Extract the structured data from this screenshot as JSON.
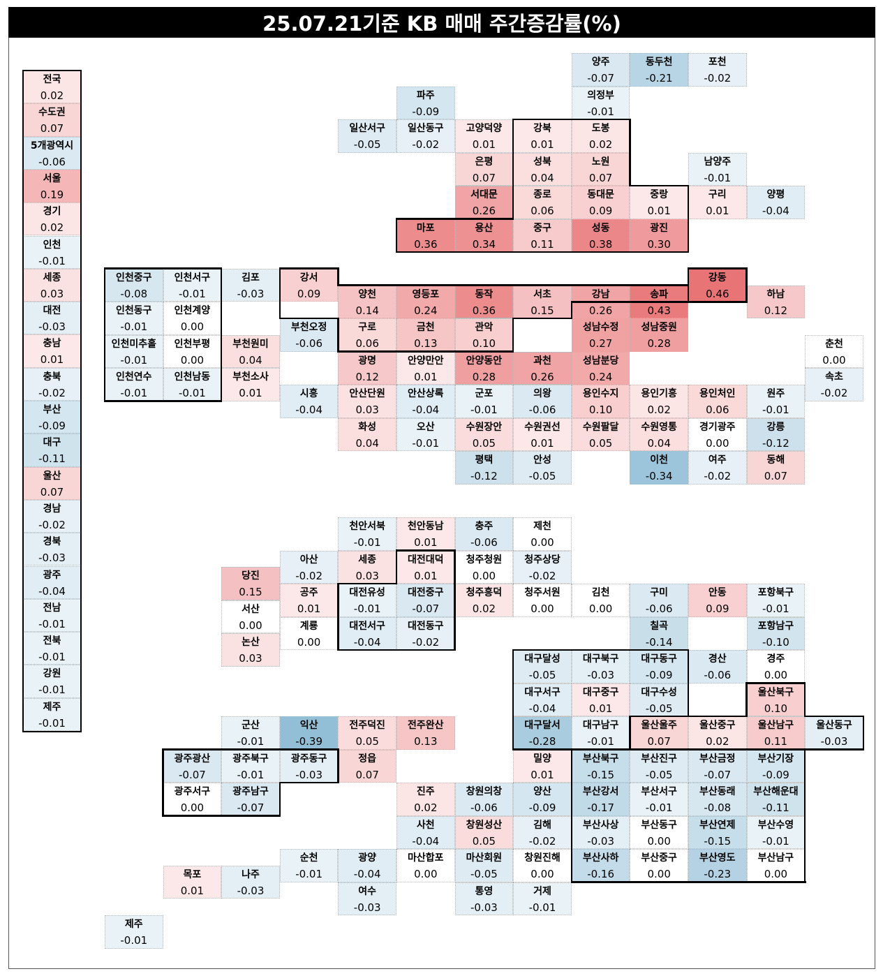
{
  "title": "25.07.21기준 KB 매매 주간증감률(%)",
  "chart_data": {
    "type": "heatmap",
    "title": "25.07.21기준 KB 매매 주간증감률(%)",
    "unit": "%",
    "color_scale": {
      "positive": "#d9444a",
      "negative": "#3d7fa8",
      "zero": "#ffffff"
    },
    "summary": [
      {
        "name": "전국",
        "value": "0.02"
      },
      {
        "name": "수도권",
        "value": "0.07"
      },
      {
        "name": "5개광역시",
        "value": "-0.06"
      },
      {
        "name": "서울",
        "value": "0.19"
      },
      {
        "name": "경기",
        "value": "0.02"
      },
      {
        "name": "인천",
        "value": "-0.01"
      },
      {
        "name": "세종",
        "value": "0.03"
      },
      {
        "name": "대전",
        "value": "-0.03"
      },
      {
        "name": "충남",
        "value": "0.01"
      },
      {
        "name": "충북",
        "value": "-0.02"
      },
      {
        "name": "부산",
        "value": "-0.09"
      },
      {
        "name": "대구",
        "value": "-0.11"
      },
      {
        "name": "울산",
        "value": "0.07"
      },
      {
        "name": "경남",
        "value": "-0.02"
      },
      {
        "name": "경북",
        "value": "-0.03"
      },
      {
        "name": "광주",
        "value": "-0.04"
      },
      {
        "name": "전남",
        "value": "-0.01"
      },
      {
        "name": "전북",
        "value": "-0.01"
      },
      {
        "name": "강원",
        "value": "-0.01"
      },
      {
        "name": "제주",
        "value": "-0.01"
      }
    ],
    "regions": [
      [
        "양주",
        "-0.07",
        10,
        1
      ],
      [
        "동두천",
        "-0.21",
        11,
        1
      ],
      [
        "포천",
        "-0.02",
        12,
        1
      ],
      [
        "파주",
        "-0.09",
        7,
        2
      ],
      [
        "의정부",
        "-0.01",
        10,
        2
      ],
      [
        "일산서구",
        "-0.05",
        6,
        3
      ],
      [
        "일산동구",
        "-0.02",
        7,
        3
      ],
      [
        "고양덕양",
        "0.01",
        8,
        3
      ],
      [
        "강북",
        "0.01",
        9,
        3
      ],
      [
        "도봉",
        "0.02",
        10,
        3
      ],
      [
        "은평",
        "0.07",
        8,
        4
      ],
      [
        "성북",
        "0.04",
        9,
        4
      ],
      [
        "노원",
        "0.07",
        10,
        4
      ],
      [
        "남양주",
        "-0.01",
        12,
        4
      ],
      [
        "서대문",
        "0.26",
        8,
        5
      ],
      [
        "종로",
        "0.06",
        9,
        5
      ],
      [
        "동대문",
        "0.09",
        10,
        5
      ],
      [
        "중랑",
        "0.01",
        11,
        5
      ],
      [
        "구리",
        "0.01",
        12,
        5
      ],
      [
        "양평",
        "-0.04",
        13,
        5
      ],
      [
        "마포",
        "0.36",
        7,
        6
      ],
      [
        "용산",
        "0.34",
        8,
        6
      ],
      [
        "중구",
        "0.11",
        9,
        6
      ],
      [
        "성동",
        "0.38",
        10,
        6
      ],
      [
        "광진",
        "0.30",
        11,
        6
      ],
      [
        "인천중구",
        "-0.08",
        2,
        7.5
      ],
      [
        "인천서구",
        "-0.01",
        3,
        7.5
      ],
      [
        "김포",
        "-0.03",
        4,
        7.5
      ],
      [
        "강서",
        "0.09",
        5,
        7.5
      ],
      [
        "강동",
        "0.46",
        12,
        7.5
      ],
      [
        "양천",
        "0.14",
        6,
        8
      ],
      [
        "영등포",
        "0.24",
        7,
        8
      ],
      [
        "동작",
        "0.36",
        8,
        8
      ],
      [
        "서초",
        "0.15",
        9,
        8
      ],
      [
        "강남",
        "0.26",
        10,
        8
      ],
      [
        "송파",
        "0.43",
        11,
        8
      ],
      [
        "하남",
        "0.12",
        13,
        8
      ],
      [
        "인천동구",
        "-0.01",
        2,
        8.5
      ],
      [
        "인천계양",
        "0.00",
        3,
        8.5
      ],
      [
        "부천오정",
        "-0.06",
        5,
        9
      ],
      [
        "구로",
        "0.06",
        6,
        9
      ],
      [
        "금천",
        "0.13",
        7,
        9
      ],
      [
        "관악",
        "0.10",
        8,
        9
      ],
      [
        "성남수정",
        "0.27",
        10,
        9
      ],
      [
        "성남중원",
        "0.28",
        11,
        9
      ],
      [
        "인천미추홀",
        "-0.01",
        2,
        9.5
      ],
      [
        "인천부평",
        "0.00",
        3,
        9.5
      ],
      [
        "부천원미",
        "0.04",
        4,
        9.5
      ],
      [
        "춘천",
        "0.00",
        14,
        9.5
      ],
      [
        "광명",
        "0.12",
        6,
        10
      ],
      [
        "안양만안",
        "0.01",
        7,
        10
      ],
      [
        "안양동안",
        "0.28",
        8,
        10
      ],
      [
        "과천",
        "0.26",
        9,
        10
      ],
      [
        "성남분당",
        "0.24",
        10,
        10
      ],
      [
        "인천연수",
        "-0.01",
        2,
        10.5
      ],
      [
        "인천남동",
        "-0.01",
        3,
        10.5
      ],
      [
        "부천소사",
        "0.01",
        4,
        10.5
      ],
      [
        "속초",
        "-0.02",
        14,
        10.5
      ],
      [
        "시흥",
        "-0.04",
        5,
        11
      ],
      [
        "안산단원",
        "0.03",
        6,
        11
      ],
      [
        "안산상록",
        "-0.04",
        7,
        11
      ],
      [
        "군포",
        "-0.01",
        8,
        11
      ],
      [
        "의왕",
        "-0.06",
        9,
        11
      ],
      [
        "용인수지",
        "0.10",
        10,
        11
      ],
      [
        "용인기흥",
        "0.02",
        11,
        11
      ],
      [
        "용인처인",
        "0.06",
        12,
        11
      ],
      [
        "원주",
        "-0.01",
        13,
        11
      ],
      [
        "화성",
        "0.04",
        6,
        12
      ],
      [
        "오산",
        "-0.01",
        7,
        12
      ],
      [
        "수원장안",
        "0.05",
        8,
        12
      ],
      [
        "수원권선",
        "0.01",
        9,
        12
      ],
      [
        "수원팔달",
        "0.05",
        10,
        12
      ],
      [
        "수원영통",
        "0.04",
        11,
        12
      ],
      [
        "경기광주",
        "0.00",
        12,
        12
      ],
      [
        "강릉",
        "-0.12",
        13,
        12
      ],
      [
        "평택",
        "-0.12",
        8,
        13
      ],
      [
        "안성",
        "-0.05",
        9,
        13
      ],
      [
        "이천",
        "-0.34",
        11,
        13
      ],
      [
        "여주",
        "-0.02",
        12,
        13
      ],
      [
        "동해",
        "0.07",
        13,
        13
      ],
      [
        "천안서북",
        "-0.01",
        6,
        15
      ],
      [
        "천안동남",
        "0.01",
        7,
        15
      ],
      [
        "충주",
        "-0.06",
        8,
        15
      ],
      [
        "제천",
        "0.00",
        9,
        15
      ],
      [
        "아산",
        "-0.02",
        5,
        16
      ],
      [
        "세종",
        "0.03",
        6,
        16
      ],
      [
        "대전대덕",
        "0.01",
        7,
        16
      ],
      [
        "청주청원",
        "0.00",
        8,
        16
      ],
      [
        "청주상당",
        "-0.02",
        9,
        16
      ],
      [
        "당진",
        "0.15",
        4,
        16.5
      ],
      [
        "공주",
        "0.01",
        5,
        17
      ],
      [
        "대전유성",
        "-0.01",
        6,
        17
      ],
      [
        "대전중구",
        "-0.07",
        7,
        17
      ],
      [
        "청주흥덕",
        "0.02",
        8,
        17
      ],
      [
        "청주서원",
        "0.00",
        9,
        17
      ],
      [
        "김천",
        "0.00",
        10,
        17
      ],
      [
        "구미",
        "-0.06",
        11,
        17
      ],
      [
        "안동",
        "0.09",
        12,
        17
      ],
      [
        "포항북구",
        "-0.01",
        13,
        17
      ],
      [
        "서산",
        "0.00",
        4,
        17.5
      ],
      [
        "계룡",
        "0.00",
        5,
        18
      ],
      [
        "대전서구",
        "-0.04",
        6,
        18
      ],
      [
        "대전동구",
        "-0.02",
        7,
        18
      ],
      [
        "칠곡",
        "-0.14",
        11,
        18
      ],
      [
        "포항남구",
        "-0.10",
        13,
        18
      ],
      [
        "논산",
        "0.03",
        4,
        18.5
      ],
      [
        "대구달성",
        "-0.05",
        9,
        19
      ],
      [
        "대구북구",
        "-0.03",
        10,
        19
      ],
      [
        "대구동구",
        "-0.09",
        11,
        19
      ],
      [
        "경산",
        "-0.06",
        12,
        19
      ],
      [
        "경주",
        "0.00",
        13,
        19
      ],
      [
        "대구서구",
        "-0.04",
        9,
        20
      ],
      [
        "대구중구",
        "0.01",
        10,
        20
      ],
      [
        "대구수성",
        "-0.05",
        11,
        20
      ],
      [
        "울산북구",
        "0.10",
        13,
        20
      ],
      [
        "군산",
        "-0.01",
        4,
        21
      ],
      [
        "익산",
        "-0.39",
        5,
        21
      ],
      [
        "전주덕진",
        "0.05",
        6,
        21
      ],
      [
        "전주완산",
        "0.13",
        7,
        21
      ],
      [
        "대구달서",
        "-0.28",
        9,
        21
      ],
      [
        "대구남구",
        "-0.01",
        10,
        21
      ],
      [
        "울산울주",
        "0.07",
        11,
        21
      ],
      [
        "울산중구",
        "0.02",
        12,
        21
      ],
      [
        "울산남구",
        "0.11",
        13,
        21
      ],
      [
        "울산동구",
        "-0.03",
        14,
        21
      ],
      [
        "광주광산",
        "-0.07",
        3,
        22
      ],
      [
        "광주북구",
        "-0.01",
        4,
        22
      ],
      [
        "광주동구",
        "-0.03",
        5,
        22
      ],
      [
        "정읍",
        "0.07",
        6,
        22
      ],
      [
        "밀양",
        "0.01",
        9,
        22
      ],
      [
        "부산북구",
        "-0.15",
        10,
        22
      ],
      [
        "부산진구",
        "-0.05",
        11,
        22
      ],
      [
        "부산금정",
        "-0.07",
        12,
        22
      ],
      [
        "부산기장",
        "-0.09",
        13,
        22
      ],
      [
        "광주서구",
        "0.00",
        3,
        23
      ],
      [
        "광주남구",
        "-0.07",
        4,
        23
      ],
      [
        "진주",
        "0.02",
        7,
        23
      ],
      [
        "창원의창",
        "-0.06",
        8,
        23
      ],
      [
        "양산",
        "-0.09",
        9,
        23
      ],
      [
        "부산강서",
        "-0.17",
        10,
        23
      ],
      [
        "부산서구",
        "-0.01",
        11,
        23
      ],
      [
        "부산동래",
        "-0.08",
        12,
        23
      ],
      [
        "부산해운대",
        "-0.11",
        13,
        23
      ],
      [
        "사천",
        "-0.04",
        7,
        24
      ],
      [
        "창원성산",
        "0.05",
        8,
        24
      ],
      [
        "김해",
        "-0.02",
        9,
        24
      ],
      [
        "부산사상",
        "-0.03",
        10,
        24
      ],
      [
        "부산동구",
        "0.00",
        11,
        24
      ],
      [
        "부산연제",
        "-0.15",
        12,
        24
      ],
      [
        "부산수영",
        "-0.01",
        13,
        24
      ],
      [
        "순천",
        "-0.01",
        5,
        25
      ],
      [
        "광양",
        "-0.04",
        6,
        25
      ],
      [
        "마산합포",
        "0.00",
        7,
        25
      ],
      [
        "마산회원",
        "-0.05",
        8,
        25
      ],
      [
        "창원진해",
        "0.00",
        9,
        25
      ],
      [
        "부산사하",
        "-0.16",
        10,
        25
      ],
      [
        "부산중구",
        "0.00",
        11,
        25
      ],
      [
        "부산영도",
        "-0.23",
        12,
        25
      ],
      [
        "부산남구",
        "0.00",
        13,
        25
      ],
      [
        "목포",
        "0.01",
        3,
        25.5
      ],
      [
        "나주",
        "-0.03",
        4,
        25.5
      ],
      [
        "여수",
        "-0.03",
        6,
        26
      ],
      [
        "통영",
        "-0.03",
        8,
        26
      ],
      [
        "거제",
        "-0.01",
        9,
        26
      ],
      [
        "제주",
        "-0.01",
        2,
        27
      ]
    ]
  }
}
